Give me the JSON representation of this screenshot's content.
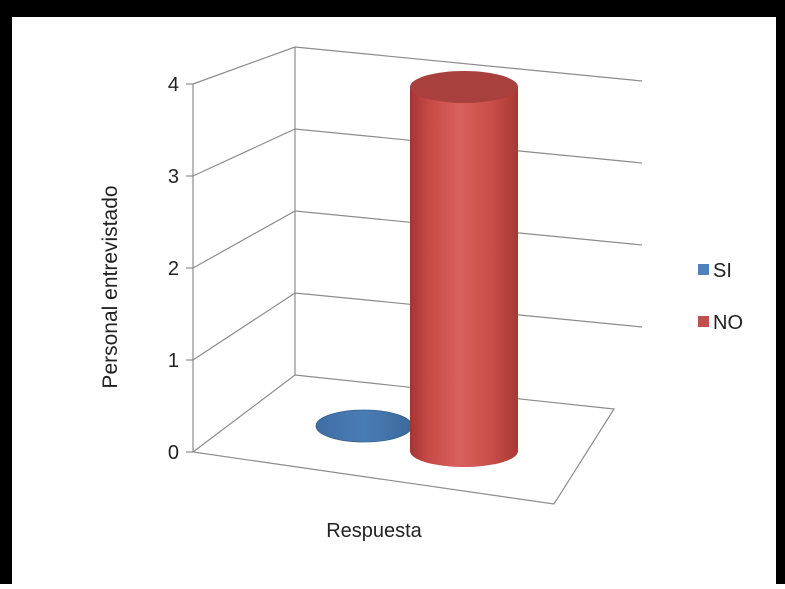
{
  "chart_data": {
    "type": "bar",
    "style": "3d-cylinder",
    "categories": [
      ""
    ],
    "series": [
      {
        "name": "SI",
        "values": [
          0
        ],
        "color": "#4f81bd"
      },
      {
        "name": "NO",
        "values": [
          4
        ],
        "color": "#c0504d"
      }
    ],
    "xlabel": "Respuesta",
    "ylabel": "Personal entrevistado",
    "yticks": [
      "0",
      "1",
      "2",
      "3",
      "4"
    ],
    "ylim": [
      0,
      4
    ],
    "grid": true,
    "legend_position": "right"
  }
}
